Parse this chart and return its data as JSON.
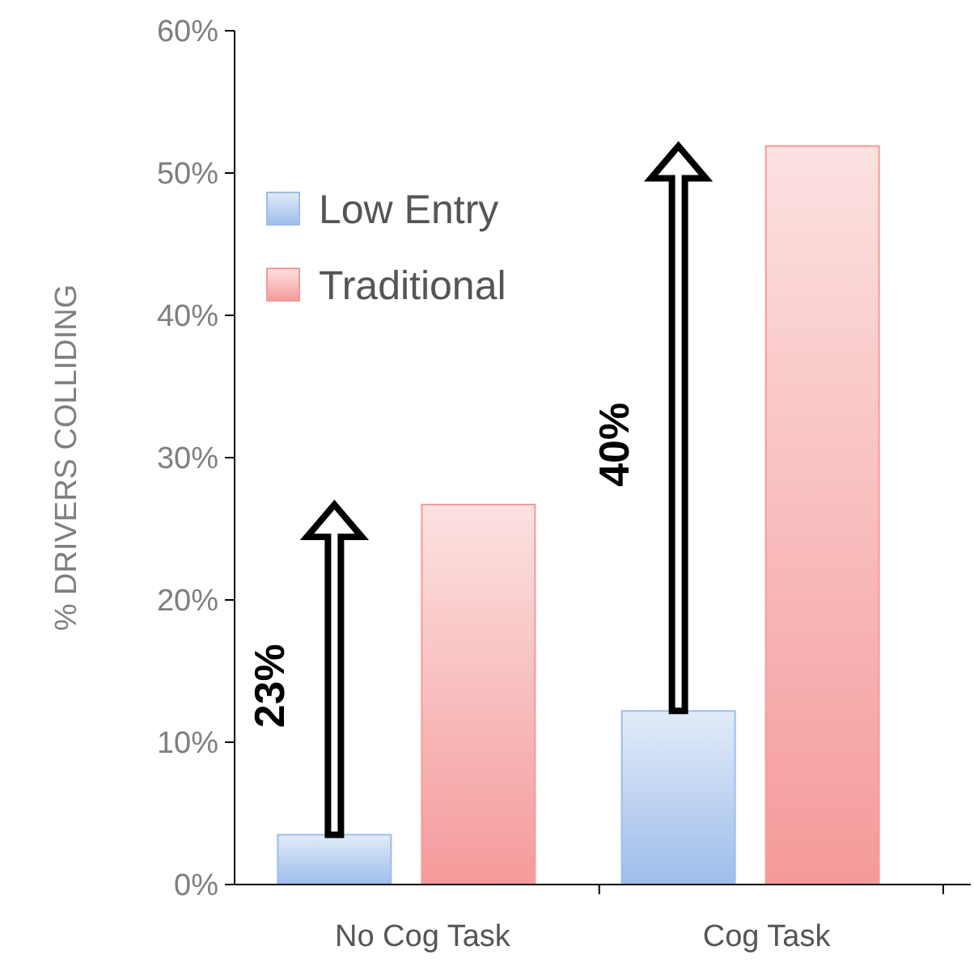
{
  "chart_data": {
    "type": "bar",
    "ylabel": "% DRIVERS COLLIDING",
    "categories": [
      "No Cog Task",
      "Cog Task"
    ],
    "series": [
      {
        "name": "Low Entry",
        "color": "#9dbdea",
        "values": [
          3.5,
          12.2
        ]
      },
      {
        "name": "Traditional",
        "color": "#f59a9a",
        "values": [
          26.7,
          51.9
        ]
      }
    ],
    "ylim": [
      0,
      60
    ],
    "yticks": [
      {
        "value": 0,
        "label": "0%"
      },
      {
        "value": 10,
        "label": "10%"
      },
      {
        "value": 20,
        "label": "20%"
      },
      {
        "value": 30,
        "label": "30%"
      },
      {
        "value": 40,
        "label": "40%"
      },
      {
        "value": 50,
        "label": "50%"
      },
      {
        "value": 60,
        "label": "60%"
      }
    ],
    "legend": "top left",
    "annotations": [
      "23%",
      "40%"
    ]
  }
}
